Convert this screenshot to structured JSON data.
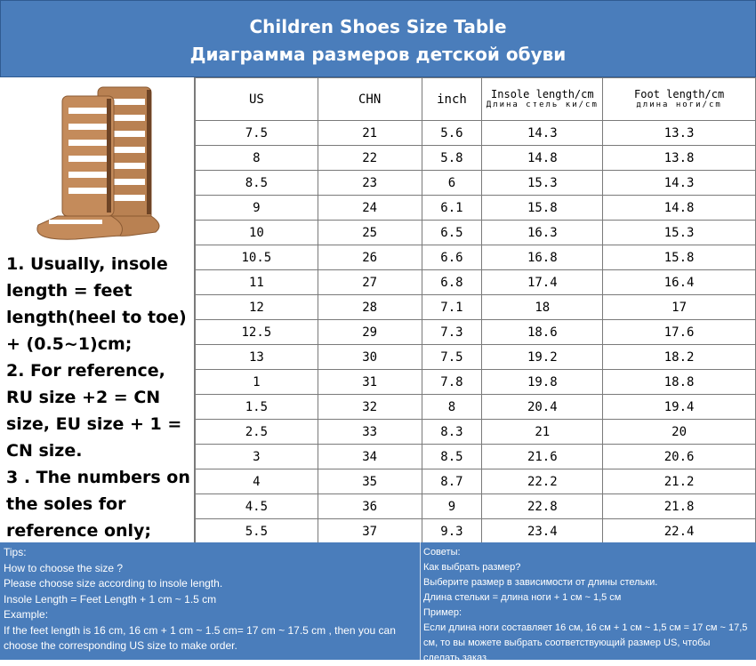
{
  "header": {
    "title_en": "Children Shoes Size Table",
    "title_ru": "Диаграмма размеров детской обуви"
  },
  "notes": {
    "item1": "1. Usually, insole length = feet length(heel to toe) + (0.5~1)cm;",
    "item2": "2. For reference, RU size +2 = CN size, EU size + 1 = CN size.",
    "item3": "3 . The numbers on the soles for reference only;"
  },
  "table": {
    "headers": {
      "us": "US",
      "chn": "CHN",
      "inch": "inch",
      "insole_en": "Insole length/cm",
      "insole_ru": "Длина стель ки/cm",
      "foot_en": "Foot length/cm",
      "foot_ru": "длина ноги/cm"
    },
    "rows": [
      [
        "7.5",
        "21",
        "5.6",
        "14.3",
        "13.3"
      ],
      [
        "8",
        "22",
        "5.8",
        "14.8",
        "13.8"
      ],
      [
        "8.5",
        "23",
        "6",
        "15.3",
        "14.3"
      ],
      [
        "9",
        "24",
        "6.1",
        "15.8",
        "14.8"
      ],
      [
        "10",
        "25",
        "6.5",
        "16.3",
        "15.3"
      ],
      [
        "10.5",
        "26",
        "6.6",
        "16.8",
        "15.8"
      ],
      [
        "11",
        "27",
        "6.8",
        "17.4",
        "16.4"
      ],
      [
        "12",
        "28",
        "7.1",
        "18",
        "17"
      ],
      [
        "12.5",
        "29",
        "7.3",
        "18.6",
        "17.6"
      ],
      [
        "13",
        "30",
        "7.5",
        "19.2",
        "18.2"
      ],
      [
        "1",
        "31",
        "7.8",
        "19.8",
        "18.8"
      ],
      [
        "1.5",
        "32",
        "8",
        "20.4",
        "19.4"
      ],
      [
        "2.5",
        "33",
        "8.3",
        "21",
        "20"
      ],
      [
        "3",
        "34",
        "8.5",
        "21.6",
        "20.6"
      ],
      [
        "4",
        "35",
        "8.7",
        "22.2",
        "21.2"
      ],
      [
        "4.5",
        "36",
        "9",
        "22.8",
        "21.8"
      ],
      [
        "5.5",
        "37",
        "9.3",
        "23.4",
        "22.4"
      ]
    ]
  },
  "tips_en": {
    "l1": "Tips:",
    "l2": "How to choose the size ?",
    "l3": "Please choose size according to insole length.",
    "l4": "Insole Length = Feet Length + 1 cm ~ 1.5 cm",
    "l5": "Example:",
    "l6": "If the feet length is 16 cm, 16 cm + 1 cm ~ 1.5 cm= 17 cm ~ 17.5 cm , then you can choose the corresponding US size to make order."
  },
  "tips_ru": {
    "l1": "Советы:",
    "l2": "Как выбрать размер?",
    "l3": "Выберите размер в зависимости от длины стельки.",
    "l4": "Длина стельки = длина ноги + 1 см ~ 1,5 см",
    "l5": "Пример:",
    "l6": "Если длина ноги составляет 16 см, 16 см + 1 см ~ 1,5 см = 17 см ~ 17,5 см, то вы можете выбрать соответствующий размер US, чтобы сделать заказ."
  },
  "colors": {
    "banner": "#4a7dbb",
    "border": "#7a7a7a",
    "leather": "#b98152"
  },
  "icons": {
    "product": "gladiator-sandal-icon"
  }
}
